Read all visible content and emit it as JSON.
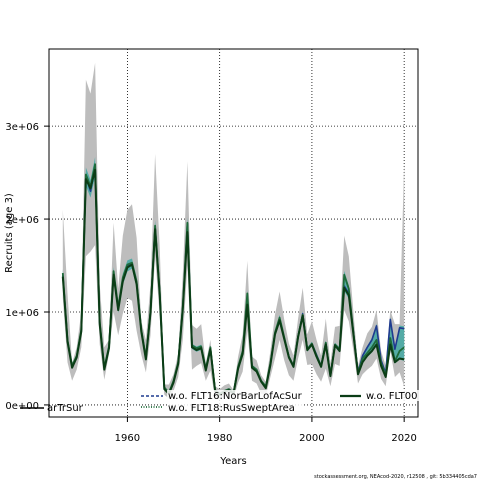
{
  "chart_data": {
    "type": "line",
    "xlabel": "Years",
    "ylabel": "Recruits (age 3)",
    "xlim": [
      1943,
      2023
    ],
    "ylim": [
      -130000,
      3830000
    ],
    "x_ticks": [
      1960,
      1980,
      2000,
      2020
    ],
    "x_tick_labels": [
      "1960",
      "1980",
      "2000",
      "2020"
    ],
    "y_ticks": [
      0,
      1000000,
      2000000,
      3000000
    ],
    "y_tick_labels": [
      "0e+00",
      "1e+06",
      "2e+06",
      "3e+06"
    ],
    "grid": true,
    "legend_position": "bottom",
    "legend_entries": [
      {
        "label": "arTrSur",
        "color": "#000000",
        "style": "solid"
      },
      {
        "label": "w.o. FLT16:NorBarLofAcSur",
        "color": "#1f3b8f",
        "style": "dotted"
      },
      {
        "label": "w.o. FLT18:RusSweptArea",
        "color": "#1e6b3a",
        "style": "solid"
      },
      {
        "label": "w.o. FLT00",
        "color": "#0b3d16",
        "style": "solid"
      }
    ],
    "footer": "stockassessment.org, NEAcod-2020, r12508 , git: 5b334405cda7",
    "band": {
      "x": [
        1946,
        1947,
        1948,
        1949,
        1950,
        1951,
        1952,
        1953,
        1954,
        1955,
        1956,
        1957,
        1958,
        1959,
        1960,
        1961,
        1962,
        1963,
        1964,
        1965,
        1966,
        1967,
        1968,
        1969,
        1970,
        1971,
        1972,
        1973,
        1974,
        1975,
        1976,
        1977,
        1978,
        1979,
        1980,
        1981,
        1982,
        1983,
        1984,
        1985,
        1986,
        1987,
        1988,
        1989,
        1990,
        1991,
        1992,
        1993,
        1994,
        1995,
        1996,
        1997,
        1998,
        1999,
        2000,
        2001,
        2002,
        2003,
        2004,
        2005,
        2006,
        2007,
        2008,
        2009,
        2010,
        2011,
        2012,
        2013,
        2014,
        2015,
        2016,
        2017,
        2018,
        2019,
        2020
      ],
      "lower": [
        1150000,
        460000,
        260000,
        380000,
        620000,
        1600000,
        1650000,
        1720000,
        650000,
        270000,
        550000,
        1000000,
        750000,
        980000,
        1150000,
        1120000,
        800000,
        540000,
        350000,
        750000,
        1600000,
        960000,
        110000,
        70000,
        150000,
        300000,
        700000,
        1500000,
        380000,
        420000,
        450000,
        260000,
        370000,
        80000,
        60000,
        90000,
        110000,
        70000,
        240000,
        360000,
        800000,
        260000,
        230000,
        120000,
        100000,
        300000,
        500000,
        700000,
        480000,
        320000,
        260000,
        500000,
        700000,
        430000,
        440000,
        330000,
        250000,
        390000,
        200000,
        440000,
        420000,
        1020000,
        900000,
        580000,
        230000,
        330000,
        380000,
        420000,
        500000,
        280000,
        200000,
        580000,
        300000,
        350000,
        200000
      ],
      "upper": [
        2100000,
        1200000,
        450000,
        620000,
        1000000,
        3500000,
        3350000,
        3680000,
        1300000,
        620000,
        700000,
        1960000,
        1250000,
        1820000,
        2100000,
        2160000,
        1800000,
        900000,
        700000,
        1300000,
        2700000,
        1700000,
        220000,
        220000,
        330000,
        550000,
        1400000,
        2620000,
        860000,
        820000,
        870000,
        450000,
        700000,
        200000,
        170000,
        210000,
        230000,
        160000,
        520000,
        760000,
        1550000,
        520000,
        480000,
        320000,
        250000,
        580000,
        970000,
        1220000,
        920000,
        660000,
        530000,
        930000,
        1260000,
        760000,
        900000,
        700000,
        530000,
        930000,
        450000,
        840000,
        850000,
        1820000,
        1600000,
        1000000,
        420000,
        620000,
        770000,
        840000,
        1020000,
        580000,
        420000,
        1020000,
        870000,
        870000,
        2600000
      ]
    },
    "series": [
      {
        "name": "w.o. FLT16:NorBarLofAcSur",
        "color": "#1f3b8f",
        "values": [
          1400000,
          690000,
          410000,
          520000,
          800000,
          2460000,
          2300000,
          2560000,
          880000,
          390000,
          620000,
          1420000,
          1030000,
          1350000,
          1500000,
          1520000,
          1320000,
          800000,
          500000,
          1000000,
          1920000,
          1200000,
          180000,
          130000,
          250000,
          450000,
          1050000,
          1950000,
          630000,
          600000,
          620000,
          380000,
          610000,
          160000,
          120000,
          150000,
          170000,
          130000,
          400000,
          570000,
          1100000,
          420000,
          370000,
          260000,
          190000,
          440000,
          770000,
          930000,
          720000,
          520000,
          420000,
          740000,
          980000,
          600000,
          660000,
          540000,
          420000,
          670000,
          320000,
          650000,
          600000,
          1280000,
          1200000,
          780000,
          350000,
          530000,
          620000,
          700000,
          850000,
          480000,
          340000,
          920000,
          600000,
          830000,
          820000
        ]
      },
      {
        "name": "w.o. FLT18:RusSweptArea",
        "color": "#1e6b3a",
        "values": [
          1420000,
          700000,
          420000,
          530000,
          810000,
          2480000,
          2350000,
          2590000,
          900000,
          400000,
          630000,
          1440000,
          1050000,
          1370000,
          1510000,
          1530000,
          1330000,
          810000,
          510000,
          1010000,
          1930000,
          1220000,
          190000,
          130000,
          260000,
          460000,
          1060000,
          1960000,
          640000,
          610000,
          630000,
          390000,
          620000,
          160000,
          120000,
          150000,
          170000,
          130000,
          410000,
          580000,
          1200000,
          420000,
          380000,
          260000,
          200000,
          450000,
          780000,
          940000,
          730000,
          520000,
          420000,
          740000,
          970000,
          600000,
          660000,
          530000,
          420000,
          670000,
          320000,
          650000,
          600000,
          1400000,
          1250000,
          780000,
          340000,
          500000,
          560000,
          620000,
          700000,
          450000,
          320000,
          720000,
          470000,
          580000,
          620000
        ]
      },
      {
        "name": "w.o. FLT00",
        "color": "#0b3d16",
        "values": [
          1380000,
          680000,
          400000,
          510000,
          790000,
          2430000,
          2330000,
          2530000,
          870000,
          380000,
          610000,
          1400000,
          1020000,
          1330000,
          1480000,
          1510000,
          1300000,
          790000,
          490000,
          990000,
          1890000,
          1190000,
          170000,
          120000,
          240000,
          440000,
          1030000,
          1860000,
          620000,
          590000,
          610000,
          370000,
          600000,
          150000,
          110000,
          140000,
          160000,
          120000,
          390000,
          550000,
          1080000,
          400000,
          360000,
          250000,
          180000,
          430000,
          760000,
          910000,
          710000,
          510000,
          410000,
          730000,
          960000,
          590000,
          650000,
          520000,
          410000,
          650000,
          310000,
          640000,
          580000,
          1260000,
          1180000,
          760000,
          330000,
          460000,
          530000,
          580000,
          650000,
          420000,
          300000,
          650000,
          460000,
          500000,
          490000
        ]
      }
    ]
  }
}
